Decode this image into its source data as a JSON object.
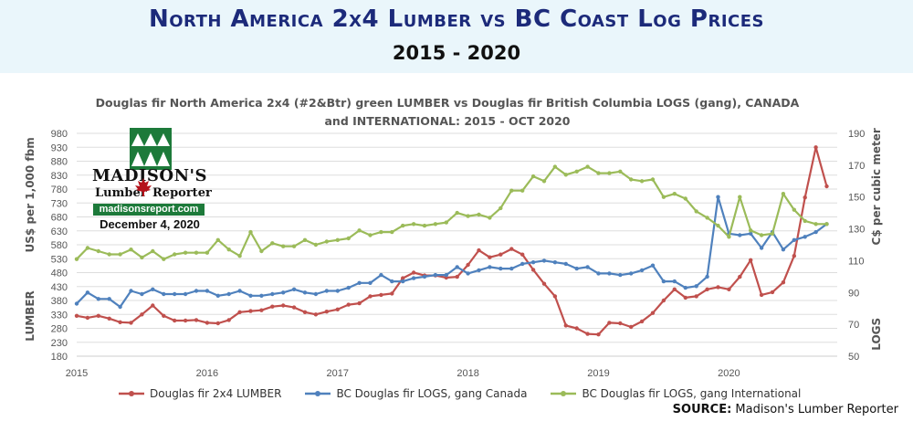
{
  "banner": {
    "title": "North America 2x4 Lumber vs BC Coast Log Prices",
    "subtitle": "2015 - 2020"
  },
  "logo": {
    "name": "MADISON'S",
    "lumber": "Lumber",
    "reporter": "Reporter",
    "website": "madisonsreport.com",
    "date": "December 4, 2020"
  },
  "source": {
    "label": "SOURCE:",
    "text": "Madison's Lumber Reporter"
  },
  "colors": {
    "lumber": "#c0504d",
    "canada": "#4f81bd",
    "international": "#9bbb59",
    "banner_bg": "#eaf6fb",
    "title": "#1c2a7a"
  },
  "chart_data": {
    "type": "line",
    "title_line1": "Douglas fir North America 2x4 (#2&Btr) green LUMBER vs Douglas fir British Columbia LOGS (gang), CANADA",
    "title_line2": "and INTERNATIONAL: 2015 - OCT 2020",
    "ylabel_left": "LUMBER          US$ per 1,000 fbm",
    "ylabel_right": "LOGS                   C$ per cubic meter",
    "x_ticks": [
      "2015",
      "2016",
      "2017",
      "2018",
      "2019",
      "2020"
    ],
    "x_range": [
      2015,
      2020.83
    ],
    "left_axis": {
      "min": 180,
      "max": 980,
      "step": 50,
      "ticks": [
        "180",
        "230",
        "280",
        "330",
        "380",
        "430",
        "480",
        "530",
        "580",
        "630",
        "680",
        "730",
        "780",
        "830",
        "880",
        "930",
        "980"
      ]
    },
    "right_axis": {
      "min": 50,
      "max": 190,
      "step": 20,
      "ticks": [
        "50",
        "70",
        "90",
        "110",
        "130",
        "150",
        "170",
        "190"
      ]
    },
    "grid": true,
    "legend_position": "bottom",
    "series": [
      {
        "name": "Douglas fir 2x4 LUMBER",
        "axis": "left",
        "color": "#c0504d",
        "start": 2015,
        "step_years": 0.08333,
        "values": [
          325,
          318,
          325,
          315,
          302,
          300,
          330,
          362,
          325,
          308,
          308,
          310,
          300,
          298,
          310,
          338,
          342,
          345,
          358,
          362,
          355,
          338,
          330,
          340,
          348,
          365,
          370,
          395,
          400,
          405,
          460,
          480,
          470,
          470,
          462,
          465,
          508,
          560,
          535,
          545,
          565,
          545,
          490,
          440,
          395,
          290,
          280,
          260,
          258,
          300,
          298,
          285,
          305,
          335,
          380,
          420,
          390,
          395,
          420,
          428,
          420,
          465,
          525,
          400,
          410,
          445,
          540,
          750,
          930,
          790
        ]
      },
      {
        "name": "BC Douglas fir LOGS, gang Canada",
        "axis": "right",
        "color": "#4f81bd",
        "start": 2015,
        "step_years": 0.08333,
        "values": [
          83,
          90,
          86,
          86,
          81,
          91,
          89,
          92,
          89,
          89,
          89,
          91,
          91,
          88,
          89,
          91,
          88,
          88,
          89,
          90,
          92,
          90,
          89,
          91,
          91,
          93,
          96,
          96,
          101,
          97,
          97,
          99,
          100,
          101,
          101,
          106,
          102,
          104,
          106,
          105,
          105,
          108,
          109,
          110,
          109,
          108,
          105,
          106,
          102,
          102,
          101,
          102,
          104,
          107,
          97,
          97,
          93,
          94,
          100,
          150,
          127,
          126,
          127,
          118,
          128,
          117,
          123,
          125,
          128,
          133
        ]
      },
      {
        "name": "BC Douglas fir LOGS, gang International",
        "axis": "right",
        "color": "#9bbb59",
        "start": 2015,
        "step_years": 0.08333,
        "values": [
          111,
          118,
          116,
          114,
          114,
          117,
          112,
          116,
          111,
          114,
          115,
          115,
          115,
          123,
          117,
          113,
          128,
          116,
          121,
          119,
          119,
          123,
          120,
          122,
          123,
          124,
          129,
          126,
          128,
          128,
          132,
          133,
          132,
          133,
          134,
          140,
          138,
          139,
          137,
          143,
          154,
          154,
          163,
          160,
          169,
          164,
          166,
          169,
          165,
          165,
          166,
          161,
          160,
          161,
          150,
          152,
          149,
          141,
          137,
          132,
          125,
          150,
          129,
          126,
          127,
          152,
          142,
          135,
          133,
          133
        ]
      }
    ]
  }
}
